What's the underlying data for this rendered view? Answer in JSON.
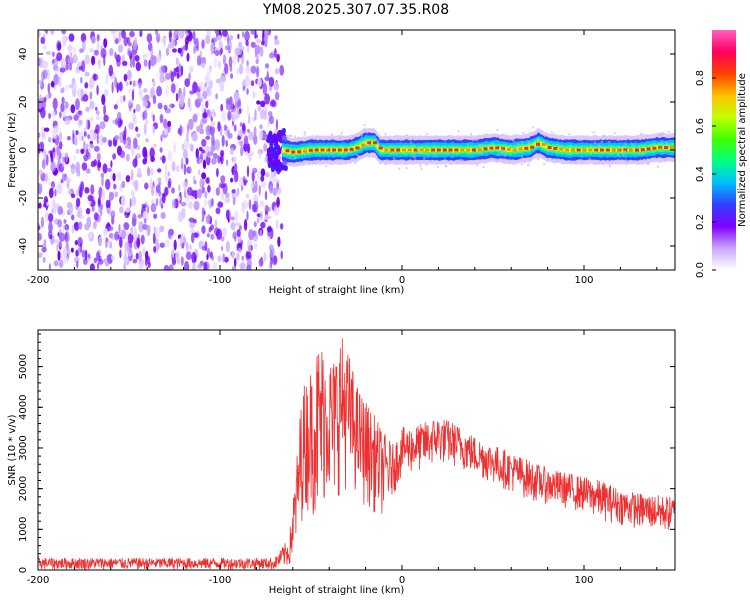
{
  "title": "YM08.2025.307.07.35.R08",
  "chart_data": [
    {
      "type": "heatmap",
      "xlabel": "Height of straight line (km)",
      "ylabel": "Frequency (Hz)",
      "xlim": [
        -200,
        150
      ],
      "ylim": [
        -50,
        50
      ],
      "xticks": [
        -200,
        -100,
        0,
        100
      ],
      "yticks": [
        -40,
        -20,
        0,
        20,
        40
      ],
      "colorbar": {
        "label": "Normalized spectral amplitude",
        "range": [
          0,
          1
        ],
        "ticks": [
          "0.0",
          "0.2",
          "0.4",
          "0.6",
          "0.8"
        ],
        "colors": [
          "#ffffff",
          "#c9a6ff",
          "#8000ff",
          "#3040ff",
          "#00c0ff",
          "#00ff80",
          "#40ff00",
          "#c0ff00",
          "#ffc000",
          "#ff4000",
          "#ff0060",
          "#ff60c0"
        ]
      },
      "noise_region_x": [
        -200,
        -66
      ],
      "signal_track": {
        "x": [
          -66,
          -60,
          -50,
          -40,
          -30,
          -25,
          -20,
          -15,
          -12,
          -10,
          -5,
          0,
          20,
          40,
          50,
          60,
          70,
          75,
          80,
          90,
          100,
          110,
          120,
          130,
          140,
          150
        ],
        "freq": [
          0,
          -1,
          0,
          0,
          0,
          1,
          3,
          3,
          0,
          0,
          0,
          0,
          0,
          0,
          1,
          0,
          1,
          3,
          1,
          0,
          0,
          0,
          0,
          0,
          1,
          1
        ]
      },
      "grid": false
    },
    {
      "type": "line",
      "xlabel": "Height of straight line (km)",
      "ylabel": "SNR (10 * v/v)",
      "xlim": [
        -200,
        150
      ],
      "ylim": [
        0,
        5900
      ],
      "xticks": [
        -200,
        -100,
        0,
        100
      ],
      "yticks": [
        0,
        1000,
        2000,
        3000,
        4000,
        5000
      ],
      "color": "#ee3030",
      "envelope": {
        "x": [
          -200,
          -150,
          -100,
          -70,
          -62,
          -58,
          -55,
          -50,
          -46,
          -42,
          -38,
          -34,
          -30,
          -25,
          -20,
          -15,
          -10,
          -5,
          0,
          10,
          20,
          30,
          40,
          50,
          60,
          70,
          80,
          90,
          100,
          110,
          120,
          130,
          140,
          150
        ],
        "low": [
          0,
          0,
          0,
          0,
          50,
          400,
          1200,
          1500,
          800,
          1700,
          1400,
          1900,
          2000,
          1800,
          1500,
          1400,
          1300,
          1800,
          2300,
          2400,
          2600,
          2500,
          2300,
          2100,
          1900,
          1700,
          1600,
          1500,
          1400,
          1200,
          1100,
          1000,
          950,
          900
        ],
        "high": [
          300,
          300,
          300,
          300,
          800,
          2700,
          4500,
          5000,
          5700,
          5600,
          5200,
          5900,
          5500,
          4600,
          4200,
          3800,
          3400,
          3100,
          3500,
          3600,
          3800,
          3600,
          3300,
          3100,
          2900,
          2700,
          2500,
          2400,
          2300,
          2200,
          2000,
          1900,
          1850,
          1800
        ]
      },
      "grid": false
    }
  ]
}
